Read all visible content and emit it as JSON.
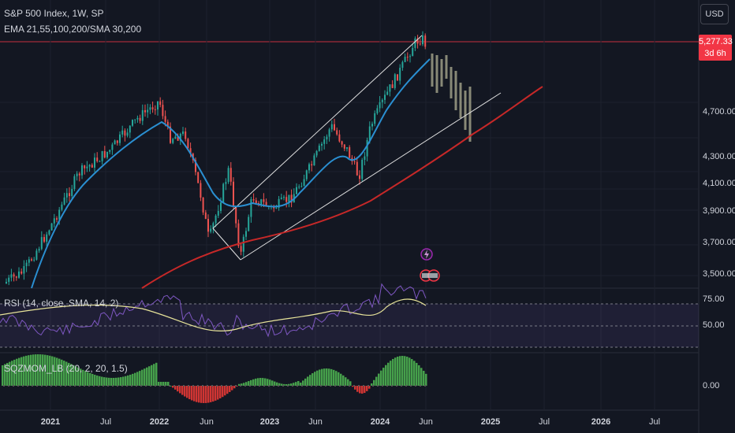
{
  "header": {
    "title": "S&P 500 Index, 1W, SP",
    "indicators": "EMA 21,55,100,200/SMA 30,200",
    "currency_button": "USD"
  },
  "price_badge": {
    "price": "5,277.33",
    "countdown": "3d 6h"
  },
  "price_axis": [
    "4,700.00",
    "4,300.00",
    "4,100.00",
    "3,900.00",
    "3,700.00",
    "3,500.00"
  ],
  "rsi": {
    "label": "RSI (14, close, SMA, 14, 2)",
    "ticks": [
      "75.00",
      "50.00"
    ]
  },
  "sqzmom": {
    "label": "SQZMOM_LB (20, 2, 20, 1.5)",
    "ticks": [
      "0.00"
    ]
  },
  "time_axis": [
    "2021",
    "Jul",
    "2022",
    "Jun",
    "2023",
    "Jun",
    "2024",
    "Jun",
    "2025",
    "Jul",
    "2026",
    "Jul"
  ],
  "colors": {
    "background": "#131722",
    "bull": "#26a69a",
    "bear": "#ef5350",
    "ema_blue": "#2a8fd1",
    "sma_red": "#c62828",
    "rsi_line": "#7e57c2",
    "rsi_ma": "#e8e49a",
    "projection": "#9e9e86",
    "sqz_green": "#4caf50",
    "sqz_red": "#e53935"
  }
}
